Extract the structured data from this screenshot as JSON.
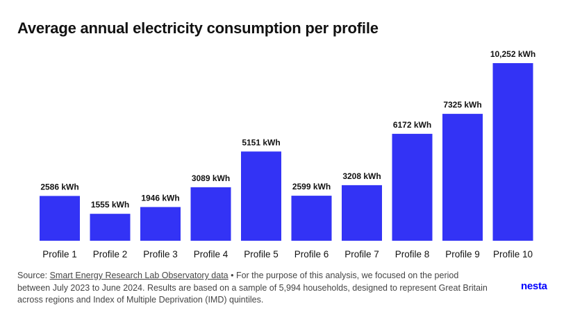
{
  "title": "Average annual electricity consumption per profile",
  "note": {
    "source_prefix": "Source: ",
    "source_link": "Smart Energy Research Lab Observatory data",
    "text": " • For the purpose of this analysis, we focused on the period between July 2023 to June 2024. Results are based on a sample of 5,994 households, designed to represent Great Britain across regions and Index of Multiple Deprivation (IMD) quintiles."
  },
  "logo": "nesta",
  "colors": {
    "bar": "#3333f5",
    "text": "#111111",
    "logo": "#0000ff"
  },
  "chart_data": {
    "type": "bar",
    "title": "Average annual electricity consumption per profile",
    "categories": [
      "Profile 1",
      "Profile 2",
      "Profile 3",
      "Profile 4",
      "Profile 5",
      "Profile 6",
      "Profile 7",
      "Profile 8",
      "Profile 9",
      "Profile 10"
    ],
    "values": [
      2586,
      1555,
      1946,
      3089,
      5151,
      2599,
      3208,
      6172,
      7325,
      10252
    ],
    "data_labels": [
      "2586 kWh",
      "1555 kWh",
      "1946 kWh",
      "3089 kWh",
      "5151 kWh",
      "2599 kWh",
      "3208 kWh",
      "6172 kWh",
      "7325 kWh",
      "10,252 kWh"
    ],
    "xlabel": "",
    "ylabel": "",
    "ylim": [
      0,
      10252
    ],
    "grid": false,
    "legend": "none"
  }
}
